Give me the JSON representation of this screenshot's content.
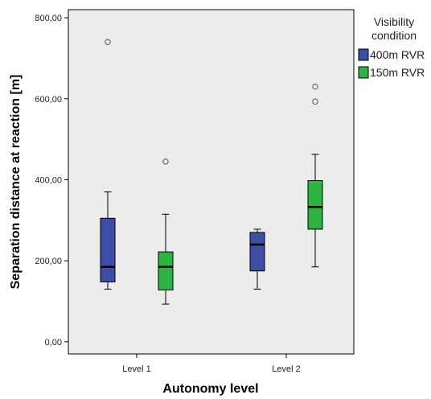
{
  "chart_data": {
    "type": "boxplot",
    "xlabel": "Autonomy level",
    "ylabel": "Separation distance at reaction [m]",
    "categories": [
      "Level 1",
      "Level 2"
    ],
    "ylim": [
      -30,
      820
    ],
    "yticks": [
      0,
      200,
      400,
      600,
      800
    ],
    "ytick_labels": [
      "0,00",
      "200,00",
      "400,00",
      "600,00",
      "800,00"
    ],
    "grid": false,
    "legend": {
      "title_lines": [
        "Visibility",
        "condition"
      ],
      "placement": "top-right outside"
    },
    "series": [
      {
        "name": "400m RVR",
        "color": "#3c4ea6",
        "boxes": [
          {
            "category": "Level 1",
            "whisker_low": 130,
            "q1": 148,
            "median": 185,
            "q3": 305,
            "whisker_high": 370,
            "outliers": [
              740
            ]
          },
          {
            "category": "Level 2",
            "whisker_low": 130,
            "q1": 175,
            "median": 240,
            "q3": 270,
            "whisker_high": 278,
            "outliers": []
          }
        ]
      },
      {
        "name": "150m RVR",
        "color": "#2bb540",
        "boxes": [
          {
            "category": "Level 1",
            "whisker_low": 93,
            "q1": 128,
            "median": 185,
            "q3": 222,
            "whisker_high": 315,
            "outliers": [
              445
            ]
          },
          {
            "category": "Level 2",
            "whisker_low": 185,
            "q1": 278,
            "median": 333,
            "q3": 398,
            "whisker_high": 463,
            "outliers": [
              593,
              630
            ]
          }
        ]
      }
    ]
  },
  "colors": {
    "plot_background": "#ececec",
    "axis": "#000000",
    "outlier_stroke": "#555555"
  }
}
